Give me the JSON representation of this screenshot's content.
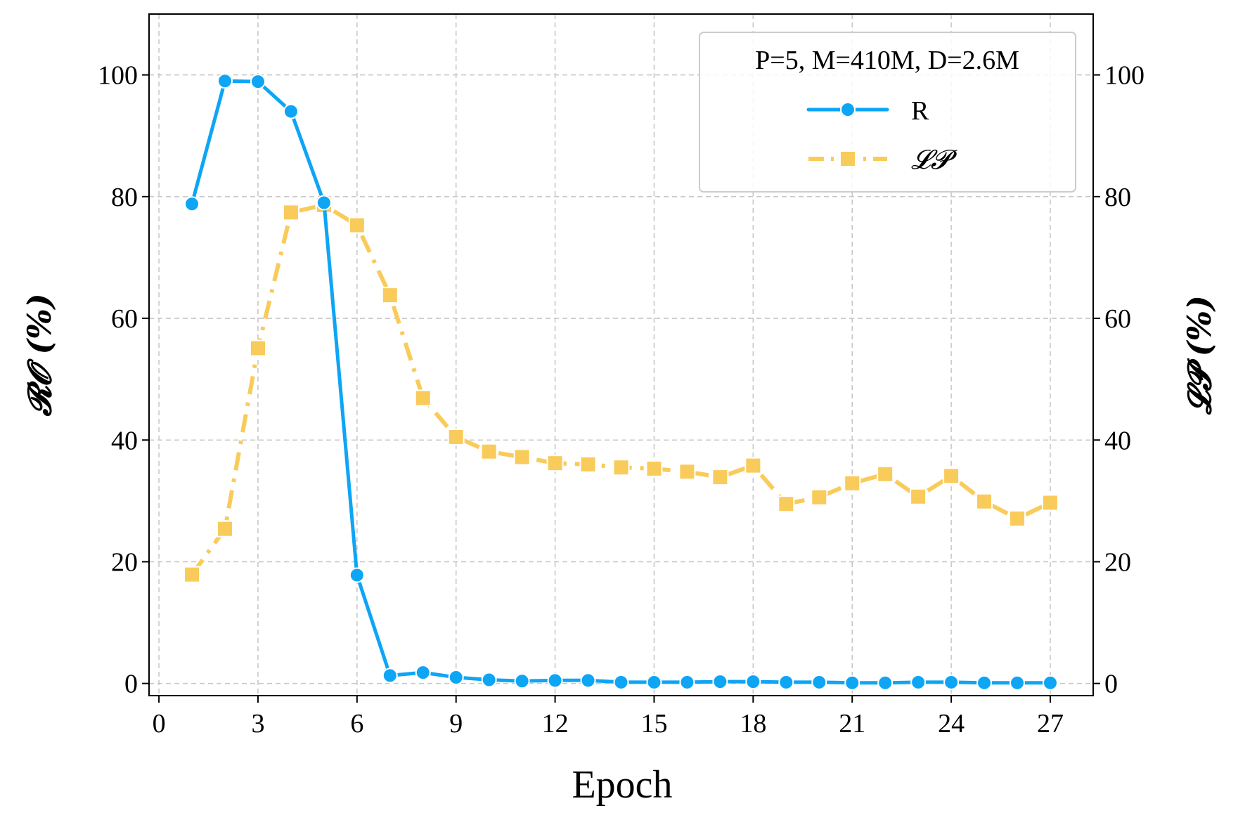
{
  "chart_data": {
    "type": "line",
    "title": "",
    "xlabel": "Epoch",
    "ylabel_left": "𝓡𝓞 (%)",
    "ylabel_right": "𝓛𝓟 (%)",
    "xlim": [
      -0.3,
      28.3
    ],
    "ylim": [
      -2,
      110
    ],
    "xticks": [
      0,
      3,
      6,
      9,
      12,
      15,
      18,
      21,
      24,
      27
    ],
    "yticks": [
      0,
      20,
      40,
      60,
      80,
      100
    ],
    "grid": true,
    "legend": {
      "title": "P=5, M=410M, D=2.6M",
      "placement": "top-right"
    },
    "series": [
      {
        "name": "R",
        "axis": "left",
        "color": "#0ea5f5",
        "marker": "circle",
        "linestyle": "solid",
        "x": [
          1,
          2,
          3,
          4,
          5,
          6,
          7,
          8,
          9,
          10,
          11,
          12,
          13,
          14,
          15,
          16,
          17,
          18,
          19,
          20,
          21,
          22,
          23,
          24,
          25,
          26,
          27
        ],
        "values": [
          78.8,
          99.0,
          98.9,
          94.0,
          79.0,
          17.8,
          1.3,
          1.8,
          1.0,
          0.6,
          0.4,
          0.5,
          0.5,
          0.2,
          0.2,
          0.2,
          0.3,
          0.3,
          0.2,
          0.2,
          0.1,
          0.1,
          0.2,
          0.2,
          0.1,
          0.1,
          0.1
        ]
      },
      {
        "name": "𝓛𝓟",
        "axis": "right",
        "color": "#f9cb5a",
        "marker": "square",
        "linestyle": "dashdot",
        "x": [
          1,
          2,
          3,
          4,
          5,
          6,
          7,
          8,
          9,
          10,
          11,
          12,
          13,
          14,
          15,
          16,
          17,
          18,
          19,
          20,
          21,
          22,
          23,
          24,
          25,
          26,
          27
        ],
        "values": [
          17.9,
          25.4,
          55.1,
          77.4,
          78.6,
          75.3,
          63.8,
          46.9,
          40.5,
          38.1,
          37.2,
          36.2,
          36.0,
          35.5,
          35.3,
          34.8,
          33.9,
          35.8,
          29.5,
          30.6,
          32.9,
          34.4,
          30.7,
          34.1,
          29.9,
          27.1,
          29.7
        ]
      }
    ]
  }
}
